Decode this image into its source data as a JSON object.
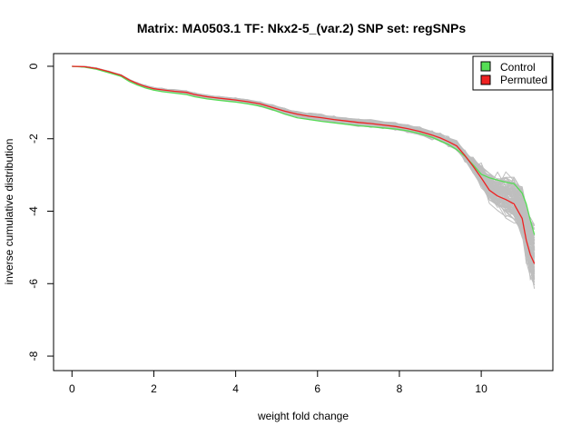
{
  "chart_data": {
    "type": "line",
    "title": "Matrix: MA0503.1 TF: Nkx2-5_(var.2) SNP set: regSNPs",
    "xlabel": "weight fold change",
    "ylabel": "inverse cumulative distribution",
    "xlim": [
      -0.45,
      11.75
    ],
    "ylim": [
      -8.4,
      0.35
    ],
    "xticks": [
      0,
      2,
      4,
      6,
      8,
      10
    ],
    "yticks": [
      0,
      -2,
      -4,
      -6,
      -8
    ],
    "grid": false,
    "legend_position": "top-right",
    "background_series_color": "#bebebe",
    "background_series_count": 100,
    "series": [
      {
        "name": "Control",
        "color": "#55dd55",
        "x": [
          0,
          0.3,
          0.6,
          0.9,
          1.2,
          1.4,
          1.6,
          1.8,
          2.0,
          2.2,
          2.5,
          2.8,
          3.0,
          3.3,
          3.6,
          4.0,
          4.3,
          4.6,
          4.9,
          5.2,
          5.5,
          5.8,
          6.1,
          6.4,
          6.7,
          7.0,
          7.3,
          7.6,
          7.9,
          8.2,
          8.5,
          8.8,
          9.0,
          9.2,
          9.4,
          9.6,
          9.8,
          10.0,
          10.2,
          10.4,
          10.6,
          10.8,
          11.0,
          11.1,
          11.2,
          11.3
        ],
        "y": [
          0,
          -0.02,
          -0.08,
          -0.18,
          -0.28,
          -0.42,
          -0.52,
          -0.6,
          -0.66,
          -0.7,
          -0.74,
          -0.78,
          -0.84,
          -0.9,
          -0.94,
          -0.99,
          -1.04,
          -1.1,
          -1.2,
          -1.32,
          -1.42,
          -1.47,
          -1.52,
          -1.56,
          -1.6,
          -1.64,
          -1.67,
          -1.7,
          -1.73,
          -1.78,
          -1.86,
          -1.96,
          -2.06,
          -2.16,
          -2.3,
          -2.48,
          -2.72,
          -2.98,
          -3.08,
          -3.14,
          -3.2,
          -3.24,
          -3.5,
          -3.8,
          -4.25,
          -4.65
        ]
      },
      {
        "name": "Permuted",
        "color": "#ee2222",
        "x": [
          0,
          0.3,
          0.6,
          0.9,
          1.2,
          1.4,
          1.6,
          1.8,
          2.0,
          2.2,
          2.5,
          2.8,
          3.0,
          3.3,
          3.6,
          4.0,
          4.3,
          4.6,
          4.9,
          5.2,
          5.5,
          5.8,
          6.1,
          6.4,
          6.7,
          7.0,
          7.3,
          7.6,
          7.9,
          8.2,
          8.5,
          8.8,
          9.0,
          9.2,
          9.4,
          9.6,
          9.8,
          10.0,
          10.2,
          10.4,
          10.6,
          10.8,
          11.0,
          11.1,
          11.2,
          11.3
        ],
        "y": [
          0,
          -0.01,
          -0.06,
          -0.15,
          -0.25,
          -0.38,
          -0.48,
          -0.56,
          -0.62,
          -0.65,
          -0.69,
          -0.72,
          -0.78,
          -0.84,
          -0.88,
          -0.93,
          -0.98,
          -1.04,
          -1.14,
          -1.24,
          -1.32,
          -1.38,
          -1.42,
          -1.47,
          -1.51,
          -1.55,
          -1.58,
          -1.62,
          -1.66,
          -1.72,
          -1.8,
          -1.9,
          -1.98,
          -2.08,
          -2.2,
          -2.46,
          -2.76,
          -3.08,
          -3.42,
          -3.58,
          -3.68,
          -3.8,
          -4.2,
          -4.8,
          -5.2,
          -5.45
        ]
      }
    ]
  }
}
